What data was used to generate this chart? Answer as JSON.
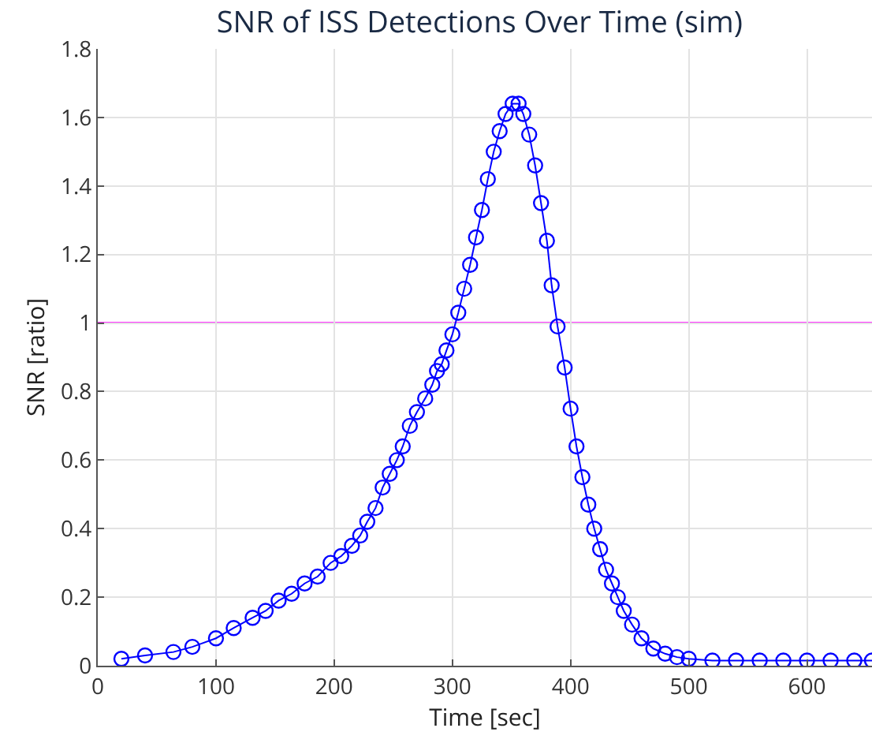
{
  "chart_data": {
    "type": "line",
    "title": "SNR of ISS Detections Over Time (sim)",
    "xlabel": "Time [sec]",
    "ylabel": "SNR [ratio]",
    "x": [
      20,
      40,
      64,
      80,
      100,
      115,
      131,
      142,
      153,
      164,
      175,
      186,
      197,
      206,
      215,
      222,
      228,
      235,
      241,
      247,
      253,
      258,
      264,
      270,
      277,
      283,
      287,
      291,
      295,
      300,
      305,
      310,
      315,
      320,
      325,
      330,
      335,
      340,
      345,
      351,
      356,
      360,
      365,
      370,
      375,
      380,
      384,
      389,
      395,
      400,
      405,
      410,
      415,
      420,
      425,
      430,
      435,
      440,
      445,
      452,
      460,
      470,
      480,
      490,
      500,
      520,
      540,
      560,
      580,
      600,
      620,
      640,
      655
    ],
    "series": [
      {
        "color": "#0000ff",
        "values": [
          0.02,
          0.03,
          0.04,
          0.055,
          0.08,
          0.11,
          0.14,
          0.16,
          0.19,
          0.21,
          0.24,
          0.26,
          0.3,
          0.32,
          0.35,
          0.38,
          0.42,
          0.46,
          0.52,
          0.56,
          0.6,
          0.64,
          0.7,
          0.74,
          0.78,
          0.82,
          0.86,
          0.88,
          0.92,
          0.967,
          1.03,
          1.1,
          1.17,
          1.25,
          1.33,
          1.42,
          1.5,
          1.56,
          1.61,
          1.64,
          1.64,
          1.61,
          1.55,
          1.46,
          1.35,
          1.24,
          1.11,
          0.99,
          0.87,
          0.75,
          0.64,
          0.55,
          0.47,
          0.4,
          0.34,
          0.28,
          0.24,
          0.2,
          0.16,
          0.12,
          0.08,
          0.05,
          0.035,
          0.025,
          0.02,
          0.015,
          0.015,
          0.015,
          0.015,
          0.015,
          0.015,
          0.015,
          0.015
        ]
      }
    ],
    "xlim": [
      0,
      655
    ],
    "xticks": [
      0,
      100,
      200,
      300,
      400,
      500,
      600
    ],
    "ylim": [
      0,
      1.8
    ],
    "yticks": [
      0,
      0.2,
      0.4,
      0.6,
      0.8,
      1,
      1.2,
      1.4,
      1.6,
      1.8
    ],
    "ref_lines": [
      {
        "axis": "y",
        "value": 1,
        "color": "#ff33ff",
        "line_style": "solid"
      }
    ],
    "grid": true,
    "marker": "circle",
    "line_style": "solid"
  }
}
